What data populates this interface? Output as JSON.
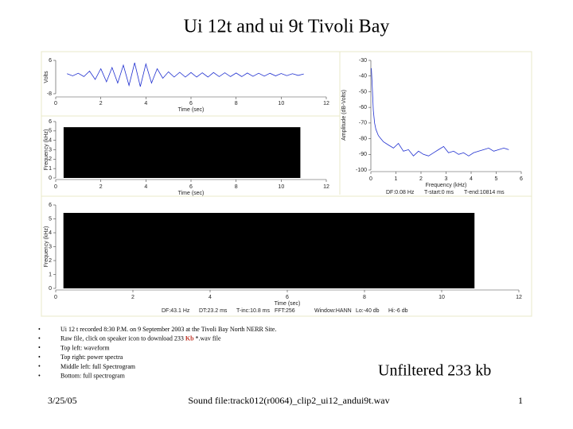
{
  "title": "Ui 12t and ui 9t Tivoli Bay",
  "chart_data": [
    {
      "type": "line",
      "ylabel": "Volts",
      "xlabel": "Time (sec)",
      "xlim": [
        0,
        12
      ],
      "xticks": [
        0,
        2,
        4,
        6,
        8,
        10,
        12
      ],
      "ylim": [
        -8,
        6
      ],
      "yticks": [
        -8,
        6
      ],
      "series": [
        {
          "color": "#1f2fd0",
          "x": [
            0.5,
            0.75,
            1,
            1.25,
            1.5,
            1.75,
            2,
            2.25,
            2.5,
            2.75,
            3,
            3.25,
            3.5,
            3.75,
            4,
            4.25,
            4.5,
            4.75,
            5,
            5.25,
            5.5,
            5.75,
            6,
            6.25,
            6.5,
            6.75,
            7,
            7.25,
            7.5,
            7.75,
            8,
            8.25,
            8.5,
            8.75,
            9,
            9.25,
            9.5,
            9.75,
            10,
            10.25,
            10.5,
            10.75,
            11
          ],
          "values": [
            0.4,
            -0.5,
            0.6,
            -0.8,
            1.5,
            -2,
            2.5,
            -3,
            3,
            -3.5,
            4,
            -4.5,
            5,
            -5,
            4.5,
            -3.5,
            2.5,
            -1.5,
            1.2,
            -1,
            1,
            -1,
            0.9,
            -1,
            0.8,
            -1,
            0.9,
            -0.8,
            0.8,
            -0.8,
            0.7,
            -0.8,
            0.7,
            -0.7,
            0.6,
            -0.6,
            0.6,
            -0.5,
            0.5,
            -0.4,
            0.4,
            -0.3,
            0.3
          ]
        }
      ]
    },
    {
      "type": "spectrogram",
      "ylabel": "Frequency (kHz)",
      "xlabel": "Time (sec)",
      "xlim": [
        0,
        12
      ],
      "xticks": [
        0,
        2,
        4,
        6,
        8,
        10,
        12
      ],
      "ylim": [
        0,
        6
      ],
      "yticks": [
        0,
        1,
        2,
        3,
        4,
        5,
        6
      ],
      "x_range": [
        0.35,
        10.85
      ],
      "y_range": [
        0,
        5.4
      ],
      "color": "#000000"
    },
    {
      "type": "line",
      "ylabel": "Amplitude (dB-Volts)",
      "xlabel": "Frequency (kHz)",
      "xlim": [
        0,
        6
      ],
      "xticks": [
        0,
        1,
        2,
        3,
        4,
        5,
        6
      ],
      "ylim": [
        -100,
        -30
      ],
      "yticks": [
        -100,
        -90,
        -80,
        -70,
        -60,
        -50,
        -40,
        -30
      ],
      "series": [
        {
          "color": "#1f2fd0",
          "x": [
            0.02,
            0.05,
            0.1,
            0.15,
            0.2,
            0.3,
            0.4,
            0.5,
            0.7,
            0.9,
            1.1,
            1.3,
            1.5,
            1.7,
            1.9,
            2.1,
            2.3,
            2.5,
            2.7,
            2.9,
            3.1,
            3.3,
            3.5,
            3.7,
            3.9,
            4.1,
            4.3,
            4.5,
            4.7,
            4.9,
            5.1,
            5.3,
            5.5
          ],
          "values": [
            -35,
            -45,
            -62,
            -70,
            -74,
            -78,
            -80,
            -82,
            -84,
            -86,
            -83,
            -88,
            -87,
            -91,
            -88,
            -90,
            -91,
            -89,
            -87,
            -85,
            -89,
            -88,
            -90,
            -89,
            -91,
            -89,
            -88,
            -87,
            -86,
            -88,
            -87,
            -86,
            -87
          ]
        }
      ],
      "notes": [
        "DF:0.08 Hz",
        "T-start:0 ms",
        "T-end:10814 ms"
      ]
    },
    {
      "type": "spectrogram",
      "ylabel": "Frequency (kHz)",
      "xlabel": "Time (sec)",
      "xlim": [
        0,
        12
      ],
      "xticks": [
        0,
        2,
        4,
        6,
        8,
        10,
        12
      ],
      "ylim": [
        0,
        6
      ],
      "yticks": [
        0,
        1,
        2,
        3,
        4,
        5,
        6
      ],
      "x_range": [
        0.2,
        10.85
      ],
      "y_range": [
        0,
        5.43
      ],
      "color": "#000000",
      "notes": [
        "DF:43.1 Hz",
        "DT:23.2 ms",
        "T-inc:10.8 ms",
        "FFT:256",
        "Window:HANN",
        "Lo:-40 db",
        "Hi:-6 db"
      ]
    }
  ],
  "bullets": [
    [
      "Ui 12 t recorded 8:30 P.M. on 9 September 2003 at the Tivoli Bay North NERR Site."
    ],
    [
      "Raw file, click on speaker icon to download 233 ",
      "Kb",
      " *.wav file"
    ],
    [
      "Top left: waveform"
    ],
    [
      "Top right: power spectra"
    ],
    [
      "Middle left: full Spectrogram"
    ],
    [
      "Bottom: full spectrogram"
    ]
  ],
  "note": "Unfiltered 233 kb",
  "footer": {
    "date": "3/25/05",
    "file": "Sound file:track012(r0064)_clip2_ui12_andui9t.wav",
    "page": "1"
  }
}
